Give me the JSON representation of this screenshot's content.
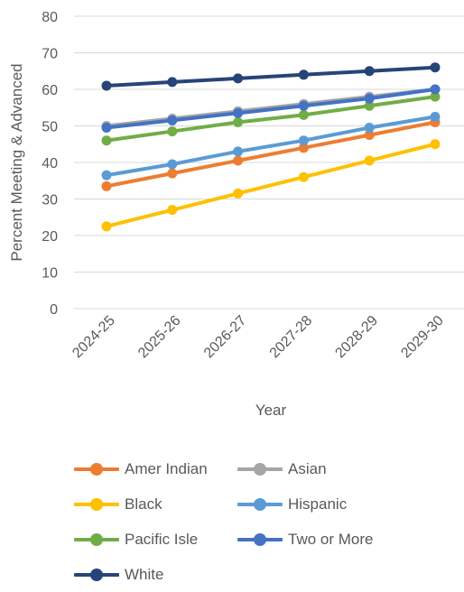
{
  "chart_data": {
    "type": "line",
    "title": "",
    "xlabel": "Year",
    "ylabel": "Percent Meeting & Advanced",
    "categories": [
      "2024-25",
      "2025-26",
      "2026-27",
      "2027-28",
      "2028-29",
      "2029-30"
    ],
    "ylim": [
      0,
      80
    ],
    "yticks": [
      "0",
      "10",
      "20",
      "30",
      "40",
      "50",
      "60",
      "70",
      "80"
    ],
    "grid": true,
    "legend_position": "bottom",
    "series": [
      {
        "name": "Amer Indian",
        "color": "#ED7D31",
        "values": [
          33.5,
          37,
          40.5,
          44,
          47.5,
          51
        ]
      },
      {
        "name": "Asian",
        "color": "#A5A5A5",
        "values": [
          50,
          52,
          54,
          56,
          58,
          60
        ]
      },
      {
        "name": "Black",
        "color": "#FFC000",
        "values": [
          22.5,
          27,
          31.5,
          36,
          40.5,
          45
        ]
      },
      {
        "name": "Hispanic",
        "color": "#5B9BD5",
        "values": [
          36.5,
          39.5,
          43,
          46,
          49.5,
          52.5
        ]
      },
      {
        "name": "Pacific Isle",
        "color": "#70AD47",
        "values": [
          46,
          48.5,
          51,
          53,
          55.5,
          58
        ]
      },
      {
        "name": "Two or More",
        "color": "#4472C4",
        "values": [
          49.5,
          51.5,
          53.5,
          55.5,
          57.5,
          60
        ]
      },
      {
        "name": "White",
        "color": "#264478",
        "values": [
          61,
          62,
          63,
          64,
          65,
          66
        ]
      }
    ]
  }
}
